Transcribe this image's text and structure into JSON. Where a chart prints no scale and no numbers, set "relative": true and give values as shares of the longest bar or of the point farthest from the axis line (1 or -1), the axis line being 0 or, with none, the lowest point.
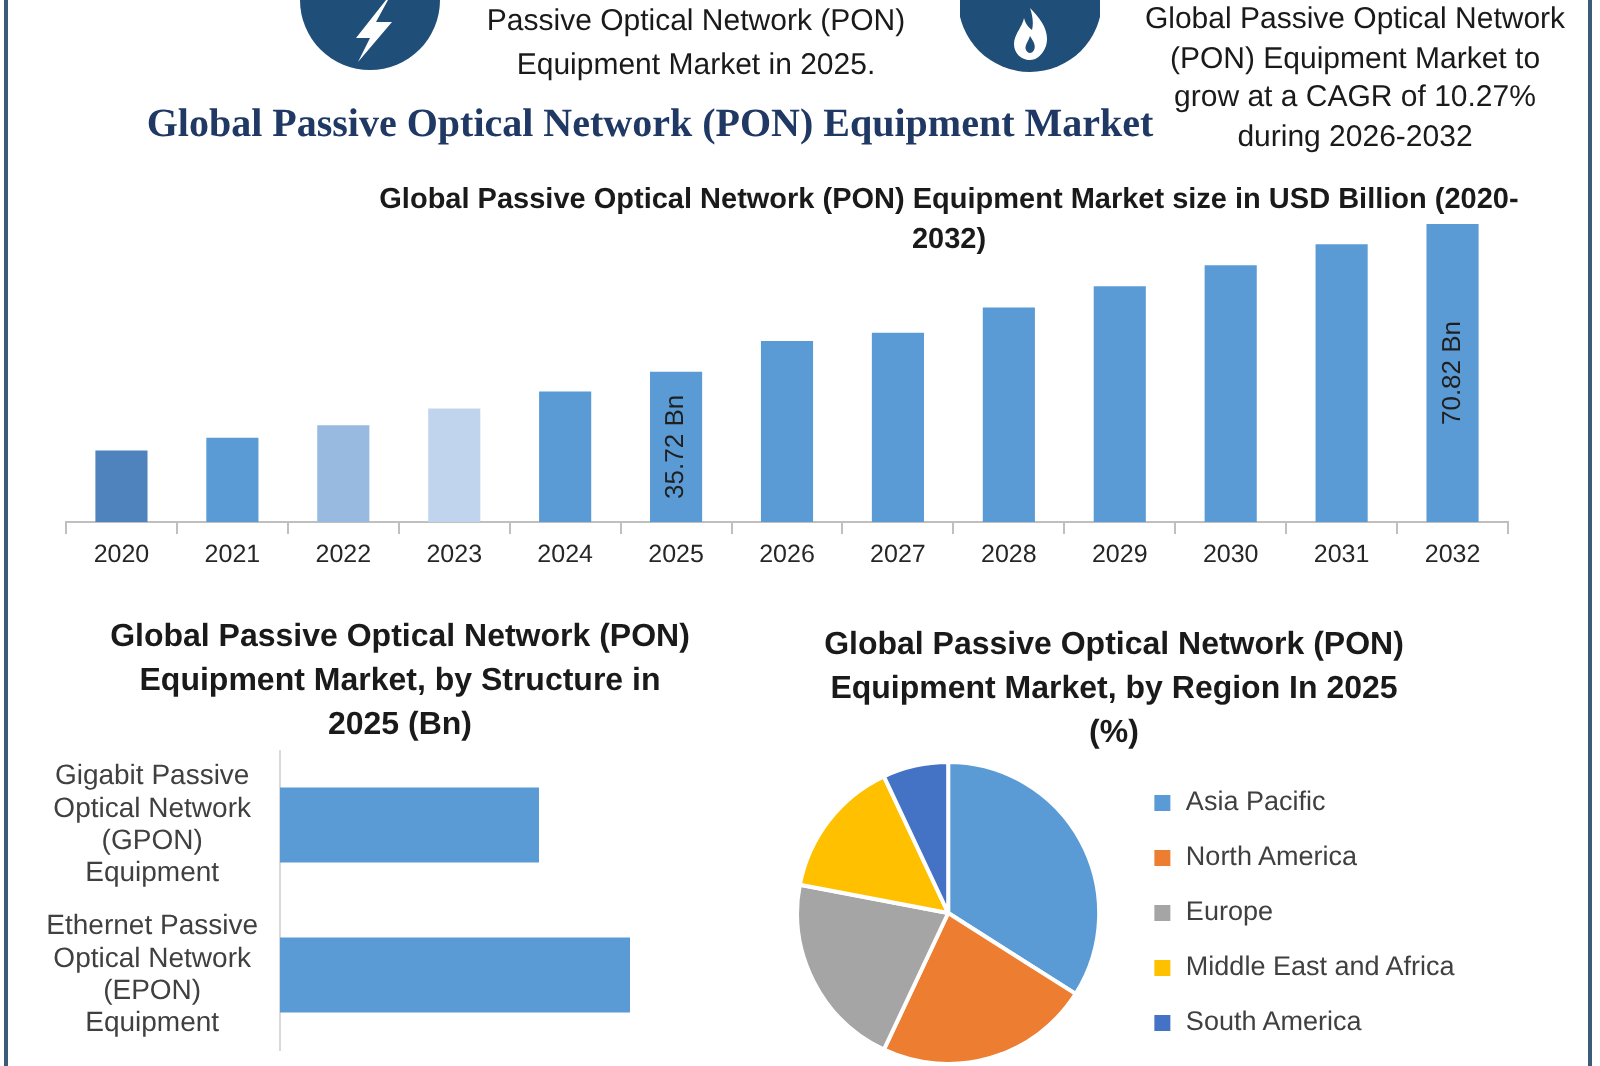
{
  "chart_data": [
    {
      "type": "other",
      "title": "Global Passive Optical Network (PON) Equipment Market",
      "annotations": [
        "Passive Optical Network (PON) Equipment Market in 2025.",
        "Global Passive Optical Network (PON) Equipment Market to grow at a CAGR of 10.27% during 2026-2032"
      ]
    },
    {
      "type": "bar",
      "title": "Global Passive Optical Network (PON) Equipment Market size in USD Billion (2020-2032)",
      "categories": [
        "2020",
        "2021",
        "2022",
        "2023",
        "2024",
        "2025",
        "2026",
        "2027",
        "2028",
        "2029",
        "2030",
        "2031",
        "2032"
      ],
      "values": [
        17,
        20,
        23,
        27,
        31,
        35.72,
        43,
        45,
        51,
        56,
        61,
        66,
        70.82
      ],
      "colors": [
        "#4f83bd",
        "#5b9bd5",
        "#98b9e0",
        "#c1d4ee",
        "#5b9bd5",
        "#5b9bd5",
        "#5b9bd5",
        "#5b9bd5",
        "#5b9bd5",
        "#5b9bd5",
        "#5b9bd5",
        "#5b9bd5",
        "#5b9bd5"
      ],
      "value_labels": [
        null,
        null,
        null,
        null,
        null,
        "35.72 Bn",
        null,
        null,
        null,
        null,
        null,
        null,
        "70.82 Bn"
      ],
      "tick_labels": "x"
    },
    {
      "type": "bar",
      "orientation": "horizontal",
      "relative": true,
      "title": "Global Passive Optical Network (PON) Equipment Market, by Structure in 2025 (Bn)",
      "categories": [
        "Gigabit Passive Optical Network (GPON) Equipment",
        "Ethernet Passive Optical Network (EPON) Equipment"
      ],
      "values": [
        0.74,
        1
      ],
      "color": "#5b9bd5"
    },
    {
      "type": "pie",
      "title": "Global Passive Optical Network (PON) Equipment Market, by Region In 2025 (%)",
      "categories": [
        "Asia Pacific",
        "North America",
        "Europe",
        "Middle East and Africa",
        "South America"
      ],
      "values": [
        34,
        23,
        21,
        15,
        7
      ],
      "colors": [
        "#5b9bd5",
        "#ed7d31",
        "#a5a5a5",
        "#ffc000",
        "#4472c4"
      ],
      "legend": "right"
    }
  ]
}
